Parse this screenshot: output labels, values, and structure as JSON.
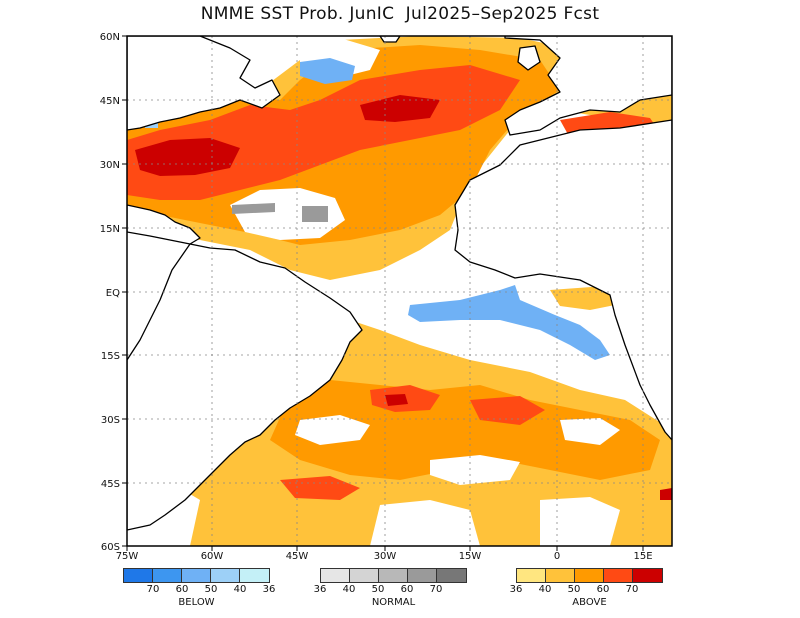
{
  "title": "NMME SST Prob. JunIC  Jul2025–Sep2025 Fcst",
  "axes": {
    "lon_labels": [
      "75W",
      "60W",
      "45W",
      "30W",
      "15W",
      "0",
      "15E"
    ],
    "lat_labels": [
      "60N",
      "45N",
      "30N",
      "15N",
      "EQ",
      "15S",
      "30S",
      "45S",
      "60S"
    ]
  },
  "colors": {
    "below": [
      "#1f78e8",
      "#3d96f0",
      "#6fb1f5",
      "#9dd0f7",
      "#c4f0f7"
    ],
    "normal": [
      "#e6e6e6",
      "#d4d4d4",
      "#b8b8b8",
      "#9a9a9a",
      "#777777"
    ],
    "above": [
      "#ffe680",
      "#ffc23a",
      "#ff9a00",
      "#ff4a14",
      "#cc0000"
    ],
    "land": "#ffffff",
    "coast": "#000000"
  },
  "legend": {
    "below": {
      "caption": "BELOW",
      "ticks": [
        "70",
        "60",
        "50",
        "40",
        "36"
      ]
    },
    "normal": {
      "caption": "NORMAL",
      "ticks": [
        "36",
        "40",
        "50",
        "60",
        "70"
      ]
    },
    "above": {
      "caption": "ABOVE",
      "ticks": [
        "36",
        "40",
        "50",
        "60",
        "70"
      ]
    }
  }
}
